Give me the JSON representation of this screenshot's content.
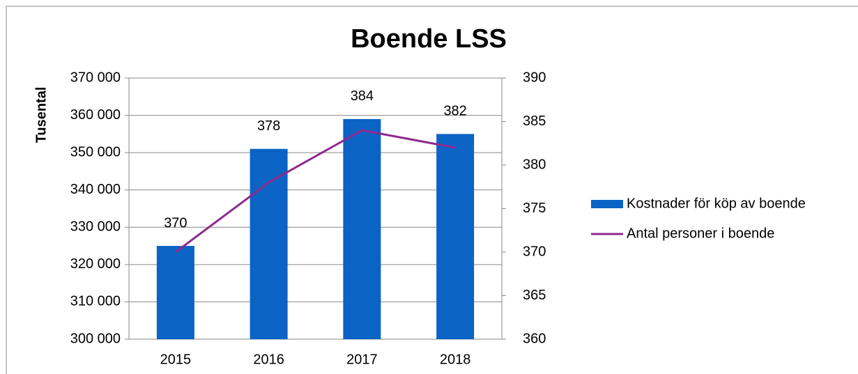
{
  "chart_data": {
    "type": "bar",
    "title": "Boende LSS",
    "ylabel": "Tusental",
    "categories": [
      "2015",
      "2016",
      "2017",
      "2018"
    ],
    "series": [
      {
        "name": "Kostnader för köp av boende",
        "color": "#0b63c5",
        "type": "bar",
        "values": [
          325000,
          351000,
          359000,
          355000
        ]
      },
      {
        "name": "Antal personer i boende",
        "color": "#8e2a8e",
        "type": "line",
        "axis": "y2",
        "values": [
          370,
          378,
          384,
          382
        ],
        "show_values": true
      }
    ],
    "ylim": [
      300000,
      370000
    ],
    "yticks": [
      {
        "value": 300000,
        "label": "300 000"
      },
      {
        "value": 310000,
        "label": "310 000"
      },
      {
        "value": 320000,
        "label": "320 000"
      },
      {
        "value": 330000,
        "label": "330 000"
      },
      {
        "value": 340000,
        "label": "340 000"
      },
      {
        "value": 350000,
        "label": "350 000"
      },
      {
        "value": 360000,
        "label": "360 000"
      },
      {
        "value": 370000,
        "label": "370 000"
      }
    ],
    "y2lim": [
      360,
      390
    ],
    "y2ticks": [
      360,
      365,
      370,
      375,
      380,
      385,
      390
    ],
    "grid": true,
    "legend": "right"
  }
}
